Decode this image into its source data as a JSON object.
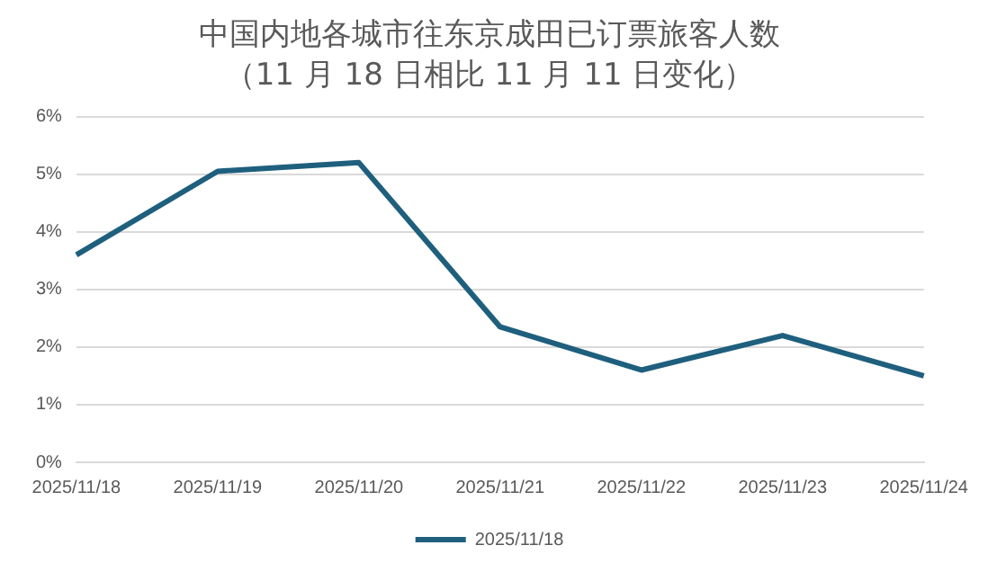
{
  "chart_data": {
    "type": "line",
    "title": "中国内地各城市往东京成田已订票旅客人数",
    "subtitle": "（11 月 18 日相比 11 月 11 日变化）",
    "categories": [
      "2025/11/18",
      "2025/11/19",
      "2025/11/20",
      "2025/11/21",
      "2025/11/22",
      "2025/11/23",
      "2025/11/24"
    ],
    "series": [
      {
        "name": "2025/11/18",
        "color": "#1f5f7e",
        "values": [
          3.6,
          5.05,
          5.2,
          2.35,
          1.6,
          2.2,
          1.5
        ]
      }
    ],
    "ylim": [
      0,
      6
    ],
    "yticks": [
      {
        "value": 0,
        "label": "0%"
      },
      {
        "value": 1,
        "label": "1%"
      },
      {
        "value": 2,
        "label": "2%"
      },
      {
        "value": 3,
        "label": "3%"
      },
      {
        "value": 4,
        "label": "4%"
      },
      {
        "value": 5,
        "label": "5%"
      },
      {
        "value": 6,
        "label": "6%"
      }
    ],
    "grid": "y",
    "legend": "bottom",
    "marker": "none",
    "line_style": "solid"
  }
}
